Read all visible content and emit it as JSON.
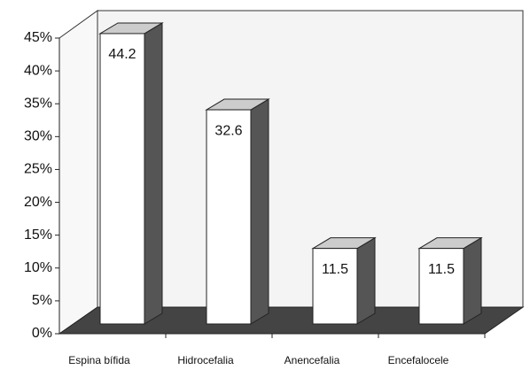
{
  "chart_data": {
    "type": "bar3d",
    "categories": [
      "Espina bífida",
      "Hidrocefalia",
      "Anencefalia",
      "Encefalocele"
    ],
    "values": [
      44.2,
      32.6,
      11.5,
      11.5
    ],
    "color": "#ffffff",
    "ylim": [
      0,
      45
    ],
    "yticks": [
      {
        "value": 0,
        "label": "0%"
      },
      {
        "value": 5,
        "label": "5%"
      },
      {
        "value": 10,
        "label": "10%"
      },
      {
        "value": 15,
        "label": "15%"
      },
      {
        "value": 20,
        "label": "20%"
      },
      {
        "value": 25,
        "label": "25%"
      },
      {
        "value": 30,
        "label": "30%"
      },
      {
        "value": 35,
        "label": "35%"
      },
      {
        "value": 40,
        "label": "40%"
      },
      {
        "value": 45,
        "label": "45%"
      }
    ]
  }
}
